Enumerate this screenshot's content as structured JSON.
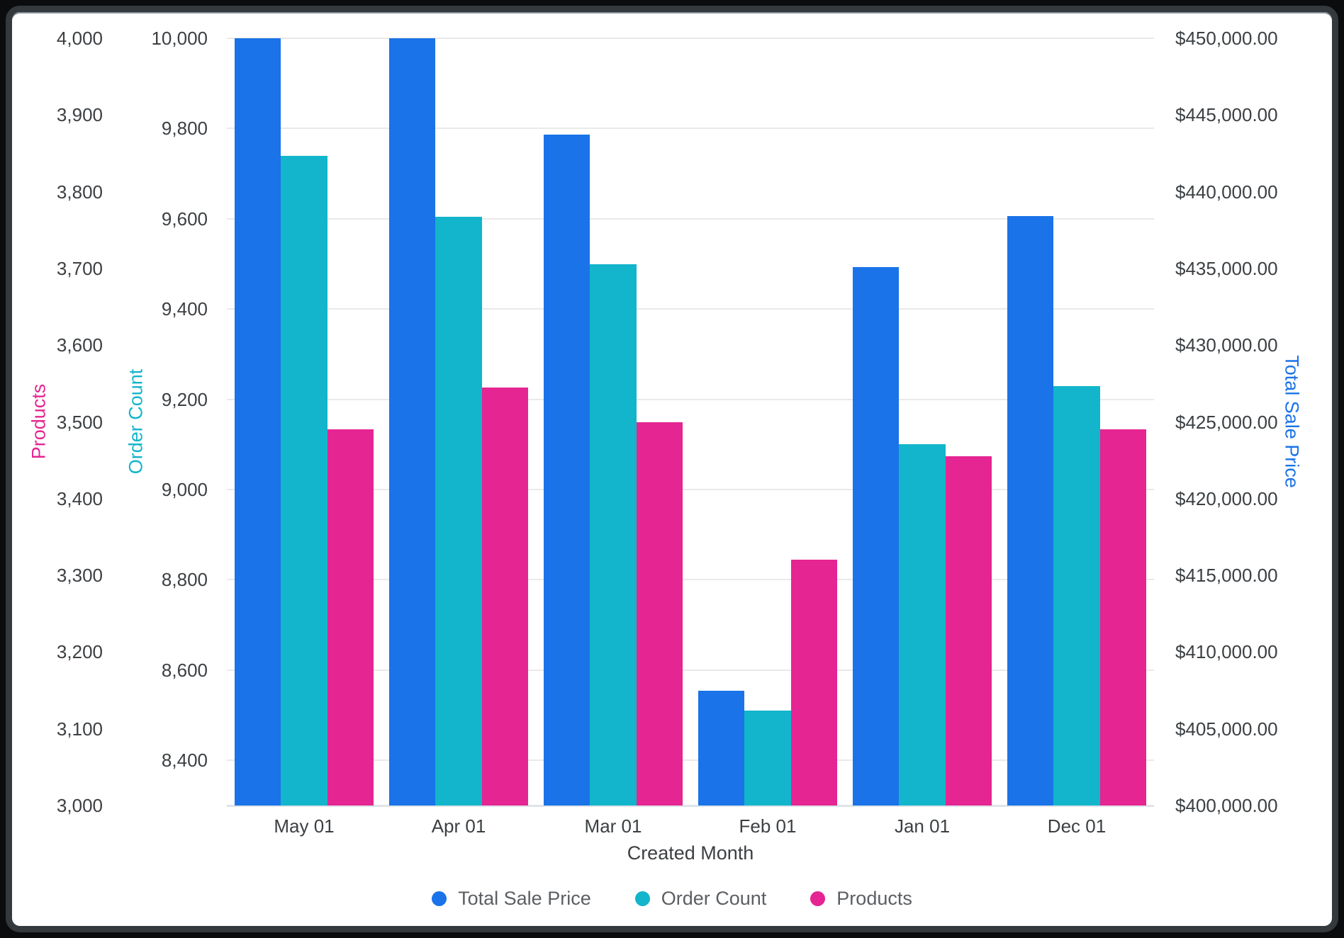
{
  "chart_data": {
    "type": "bar",
    "title": "",
    "xlabel": "Created Month",
    "categories": [
      "May 01",
      "Apr 01",
      "Mar 01",
      "Feb 01",
      "Jan 01",
      "Dec 01"
    ],
    "series": [
      {
        "name": "Total Sale Price",
        "axis": "tsp",
        "color": "#1a73e8",
        "values": [
          450000,
          450000,
          443700,
          407500,
          435100,
          438400
        ]
      },
      {
        "name": "Order Count",
        "axis": "order_count",
        "color": "#12b5cb",
        "values": [
          9740,
          9605,
          9500,
          8510,
          9100,
          9230
        ]
      },
      {
        "name": "Products",
        "axis": "products",
        "color": "#e52592",
        "values": [
          3490,
          3545,
          3500,
          3320,
          3455,
          3490
        ]
      }
    ],
    "axes": {
      "products": {
        "title": "Products",
        "color": "#e52592",
        "min": 3000,
        "max": 4000,
        "ticks": [
          {
            "v": 4000,
            "label": "4,000"
          },
          {
            "v": 3900,
            "label": "3,900"
          },
          {
            "v": 3800,
            "label": "3,800"
          },
          {
            "v": 3700,
            "label": "3,700"
          },
          {
            "v": 3600,
            "label": "3,600"
          },
          {
            "v": 3500,
            "label": "3,500"
          },
          {
            "v": 3400,
            "label": "3,400"
          },
          {
            "v": 3300,
            "label": "3,300"
          },
          {
            "v": 3200,
            "label": "3,200"
          },
          {
            "v": 3100,
            "label": "3,100"
          },
          {
            "v": 3000,
            "label": "3,000"
          }
        ]
      },
      "order_count": {
        "title": "Order Count",
        "color": "#12b5cb",
        "min": 8300,
        "max": 10000,
        "ticks": [
          {
            "v": 10000,
            "label": "10,000"
          },
          {
            "v": 9800,
            "label": "9,800"
          },
          {
            "v": 9600,
            "label": "9,600"
          },
          {
            "v": 9400,
            "label": "9,400"
          },
          {
            "v": 9200,
            "label": "9,200"
          },
          {
            "v": 9000,
            "label": "9,000"
          },
          {
            "v": 8800,
            "label": "8,800"
          },
          {
            "v": 8600,
            "label": "8,600"
          },
          {
            "v": 8400,
            "label": "8,400"
          }
        ]
      },
      "tsp": {
        "title": "Total Sale Price",
        "color": "#1a73e8",
        "min": 400000,
        "max": 450000,
        "ticks": [
          {
            "v": 450000,
            "label": "$450,000.00"
          },
          {
            "v": 445000,
            "label": "$445,000.00"
          },
          {
            "v": 440000,
            "label": "$440,000.00"
          },
          {
            "v": 435000,
            "label": "$435,000.00"
          },
          {
            "v": 430000,
            "label": "$430,000.00"
          },
          {
            "v": 425000,
            "label": "$425,000.00"
          },
          {
            "v": 420000,
            "label": "$420,000.00"
          },
          {
            "v": 415000,
            "label": "$415,000.00"
          },
          {
            "v": 410000,
            "label": "$410,000.00"
          },
          {
            "v": 405000,
            "label": "$405,000.00"
          },
          {
            "v": 400000,
            "label": "$400,000.00"
          }
        ]
      }
    },
    "grid": "horizontal lines at order_count ticks",
    "legend_position": "bottom",
    "legend": [
      "Total Sale Price",
      "Order Count",
      "Products"
    ]
  },
  "colors": {
    "gridline": "#e9e9e9",
    "baseline": "#dfe4ea",
    "tick_text": "#3c4043",
    "legend_text": "#5b5f63",
    "card_border": "#33393c",
    "background": "#ffffff"
  }
}
